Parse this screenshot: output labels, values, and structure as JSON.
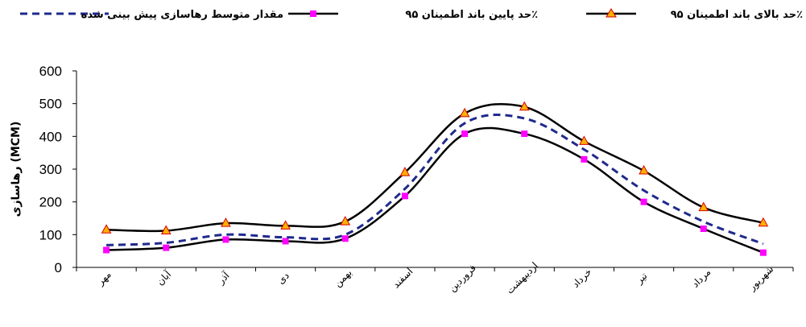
{
  "chart_data": {
    "type": "line",
    "title": "",
    "xlabel": "",
    "ylabel": "رهاسازی (MCM)",
    "ylim": [
      0,
      600
    ],
    "yticks": [
      0,
      100,
      200,
      300,
      400,
      500,
      600
    ],
    "grid": false,
    "legend_position": "top",
    "categories": [
      "مهر",
      "آبان",
      "آذر",
      "دی",
      "بهمن",
      "اسفند",
      "فروردین",
      "اردیبهشت",
      "خرداد",
      "تیر",
      "مرداد",
      "شهریور"
    ],
    "series": [
      {
        "name": "حد بالای باند اطمینان ۹۵٪",
        "color": "#000000",
        "marker": "triangle",
        "marker_color": "#ff8c00",
        "values": [
          115,
          112,
          135,
          127,
          140,
          290,
          470,
          490,
          385,
          295,
          183,
          136
        ]
      },
      {
        "name": "حد پایین باند اطمینان ۹۵٪",
        "color": "#000000",
        "marker": "square",
        "marker_color": "#ff00ff",
        "values": [
          53,
          60,
          85,
          80,
          88,
          218,
          408,
          408,
          330,
          200,
          118,
          45
        ]
      },
      {
        "name": "مقدار متوسط رهاسازی پیش بینی شده",
        "color": "#1f2a8c",
        "line_style": "dashed",
        "values": [
          68,
          75,
          100,
          92,
          100,
          240,
          440,
          455,
          360,
          235,
          140,
          72
        ]
      }
    ]
  }
}
